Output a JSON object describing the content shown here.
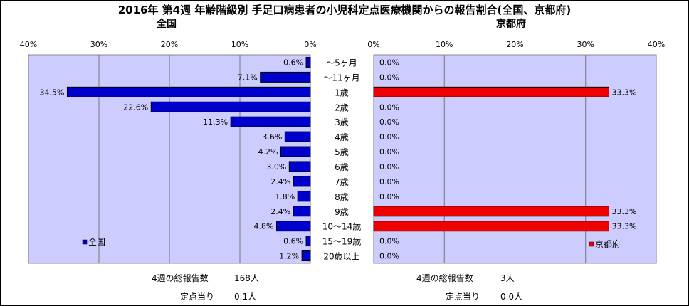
{
  "title": "2016年 第4週 年齢階級別 手足口病患者の小児科定点医療機関からの報告割合(全国、京都府)",
  "categories": [
    "～5ヶ月",
    "～11ヶ月",
    "1歳",
    "2歳",
    "3歳",
    "4歳",
    "5歳",
    "6歳",
    "7歳",
    "8歳",
    "9歳",
    "10～14歳",
    "15～19歳",
    "20歳以上"
  ],
  "colors": {
    "national": "#0000cc",
    "kyoto": "#ee0000",
    "plot_bg": "#ccccff",
    "grid": "#777777"
  },
  "chart_data": [
    {
      "type": "bar",
      "orientation": "horizontal-reversed",
      "title": "全国",
      "categories": [
        "～5ヶ月",
        "～11ヶ月",
        "1歳",
        "2歳",
        "3歳",
        "4歳",
        "5歳",
        "6歳",
        "7歳",
        "8歳",
        "9歳",
        "10～14歳",
        "15～19歳",
        "20歳以上"
      ],
      "series": [
        {
          "name": "全国",
          "values": [
            0.6,
            7.1,
            34.5,
            22.6,
            11.3,
            3.6,
            4.2,
            3.0,
            2.4,
            1.8,
            2.4,
            4.8,
            0.6,
            1.2
          ]
        }
      ],
      "value_labels": [
        "0.6%",
        "7.1%",
        "34.5%",
        "22.6%",
        "11.3%",
        "3.6%",
        "4.2%",
        "3.0%",
        "2.4%",
        "1.8%",
        "2.4%",
        "4.8%",
        "0.6%",
        "1.2%"
      ],
      "xlim": [
        0,
        40
      ],
      "ticks": [
        "40%",
        "30%",
        "20%",
        "10%",
        "0%"
      ],
      "grid": true,
      "legend": "bottom-left"
    },
    {
      "type": "bar",
      "orientation": "horizontal",
      "title": "京都府",
      "categories": [
        "～5ヶ月",
        "～11ヶ月",
        "1歳",
        "2歳",
        "3歳",
        "4歳",
        "5歳",
        "6歳",
        "7歳",
        "8歳",
        "9歳",
        "10～14歳",
        "15～19歳",
        "20歳以上"
      ],
      "series": [
        {
          "name": "京都府",
          "values": [
            0,
            0,
            33.3,
            0,
            0,
            0,
            0,
            0,
            0,
            0,
            33.3,
            33.3,
            0,
            0
          ]
        }
      ],
      "value_labels": [
        "0.0%",
        "0.0%",
        "33.3%",
        "0.0%",
        "0.0%",
        "0.0%",
        "0.0%",
        "0.0%",
        "0.0%",
        "0.0%",
        "33.3%",
        "33.3%",
        "0.0%",
        "0.0%"
      ],
      "xlim": [
        0,
        40
      ],
      "ticks": [
        "0%",
        "10%",
        "20%",
        "30%",
        "40%"
      ],
      "grid": true,
      "legend": "bottom-right"
    }
  ],
  "footer": {
    "national": {
      "total_label": "4週の総報告数",
      "total_value": "168人",
      "per_label": "定点当り",
      "per_value": "0.1人"
    },
    "kyoto": {
      "total_label": "4週の総報告数",
      "total_value": "3人",
      "per_label": "定点当り",
      "per_value": "0.0人"
    }
  }
}
